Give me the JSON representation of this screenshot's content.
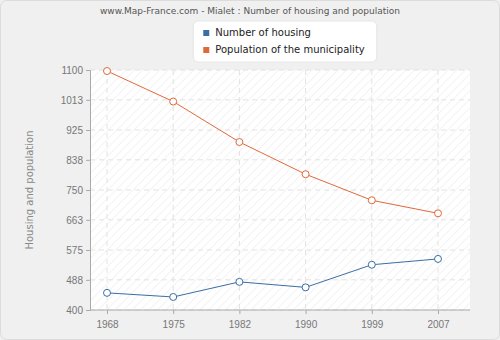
{
  "chart_data": {
    "type": "line",
    "title": "www.Map-France.com - Mialet : Number of housing and population",
    "y_label": "Housing and population",
    "categories": [
      "1968",
      "1975",
      "1982",
      "1990",
      "1999",
      "2007"
    ],
    "series": [
      {
        "name": "Number of housing",
        "color": "#3a6ea5",
        "marker": "circle",
        "values": [
          450,
          438,
          482,
          466,
          532,
          549
        ]
      },
      {
        "name": "Population of the municipality",
        "color": "#e0693a",
        "marker": "circle",
        "values": [
          1097,
          1008,
          890,
          796,
          720,
          682
        ]
      }
    ],
    "ylim": [
      400,
      1100
    ],
    "yticks": [
      400,
      488,
      575,
      663,
      750,
      838,
      925,
      1013,
      1100
    ],
    "grid": true,
    "legend": "top"
  }
}
